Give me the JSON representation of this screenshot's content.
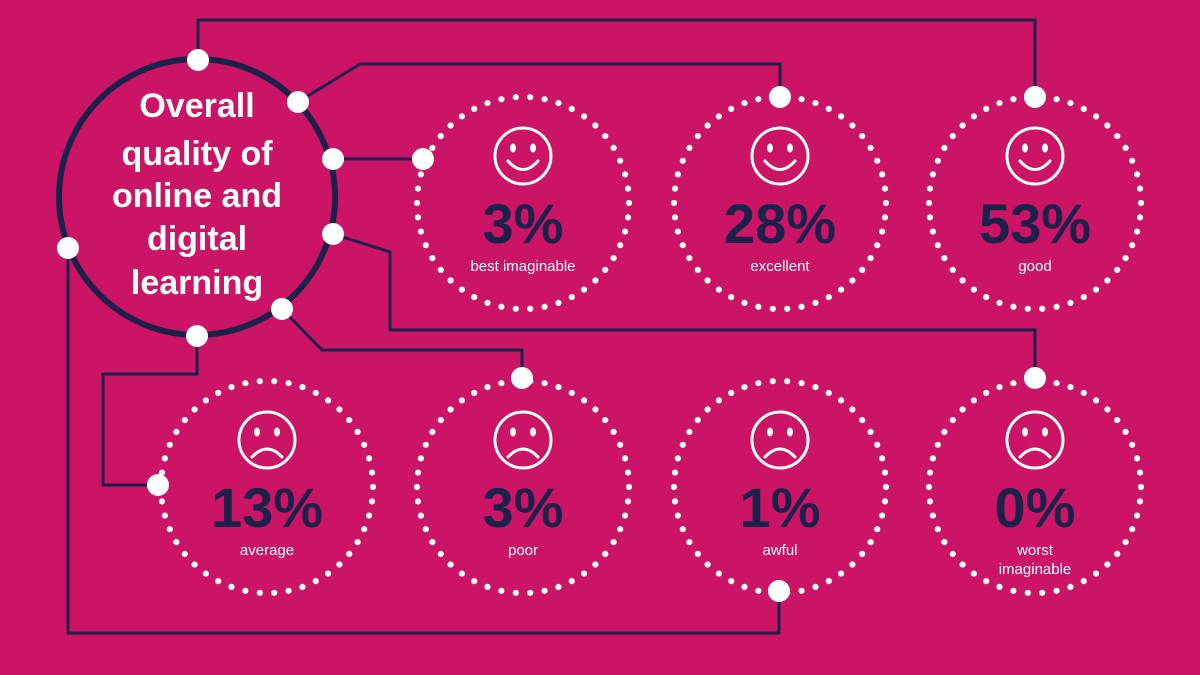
{
  "colors": {
    "background": "#cc1466",
    "dark": "#1b2148",
    "light": "#ffffff"
  },
  "center": {
    "title_lines": [
      "Overall",
      "quality of",
      "online and",
      "digital",
      "learning"
    ]
  },
  "ratings": [
    {
      "percent": "3%",
      "label_lines": [
        "best imaginable"
      ],
      "face": "smile-icon"
    },
    {
      "percent": "28%",
      "label_lines": [
        "excellent"
      ],
      "face": "smile-icon"
    },
    {
      "percent": "53%",
      "label_lines": [
        "good"
      ],
      "face": "smile-icon"
    },
    {
      "percent": "13%",
      "label_lines": [
        "average"
      ],
      "face": "frown-icon"
    },
    {
      "percent": "3%",
      "label_lines": [
        "poor"
      ],
      "face": "frown-icon"
    },
    {
      "percent": "1%",
      "label_lines": [
        "awful"
      ],
      "face": "frown-icon"
    },
    {
      "percent": "0%",
      "label_lines": [
        "worst",
        "imaginable"
      ],
      "face": "frown-icon"
    }
  ]
}
